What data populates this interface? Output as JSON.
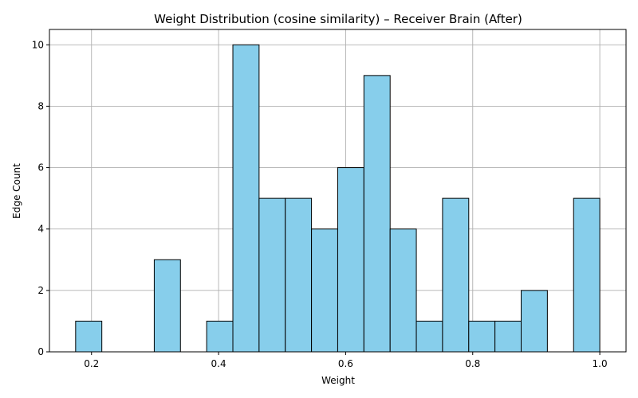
{
  "chart_data": {
    "type": "bar",
    "title": "Weight Distribution (cosine similarity) – Receiver Brain (After)",
    "xlabel": "Weight",
    "ylabel": "Edge Count",
    "bin_start": 0.175,
    "bin_width": 0.04125,
    "counts": [
      1,
      0,
      0,
      3,
      0,
      1,
      10,
      5,
      5,
      4,
      6,
      9,
      4,
      1,
      5,
      1,
      1,
      2,
      0,
      5
    ],
    "xlim": [
      0.1338,
      1.0413
    ],
    "ylim": [
      0,
      10.5
    ],
    "xticks": [
      0.2,
      0.4,
      0.6,
      0.8,
      1.0
    ],
    "xtick_labels": [
      "0.2",
      "0.4",
      "0.6",
      "0.8",
      "1.0"
    ],
    "yticks": [
      0,
      2,
      4,
      6,
      8,
      10
    ],
    "ytick_labels": [
      "0",
      "2",
      "4",
      "6",
      "8",
      "10"
    ],
    "grid": true,
    "bar_color": "#87ceeb",
    "edge_color": "#000000"
  }
}
